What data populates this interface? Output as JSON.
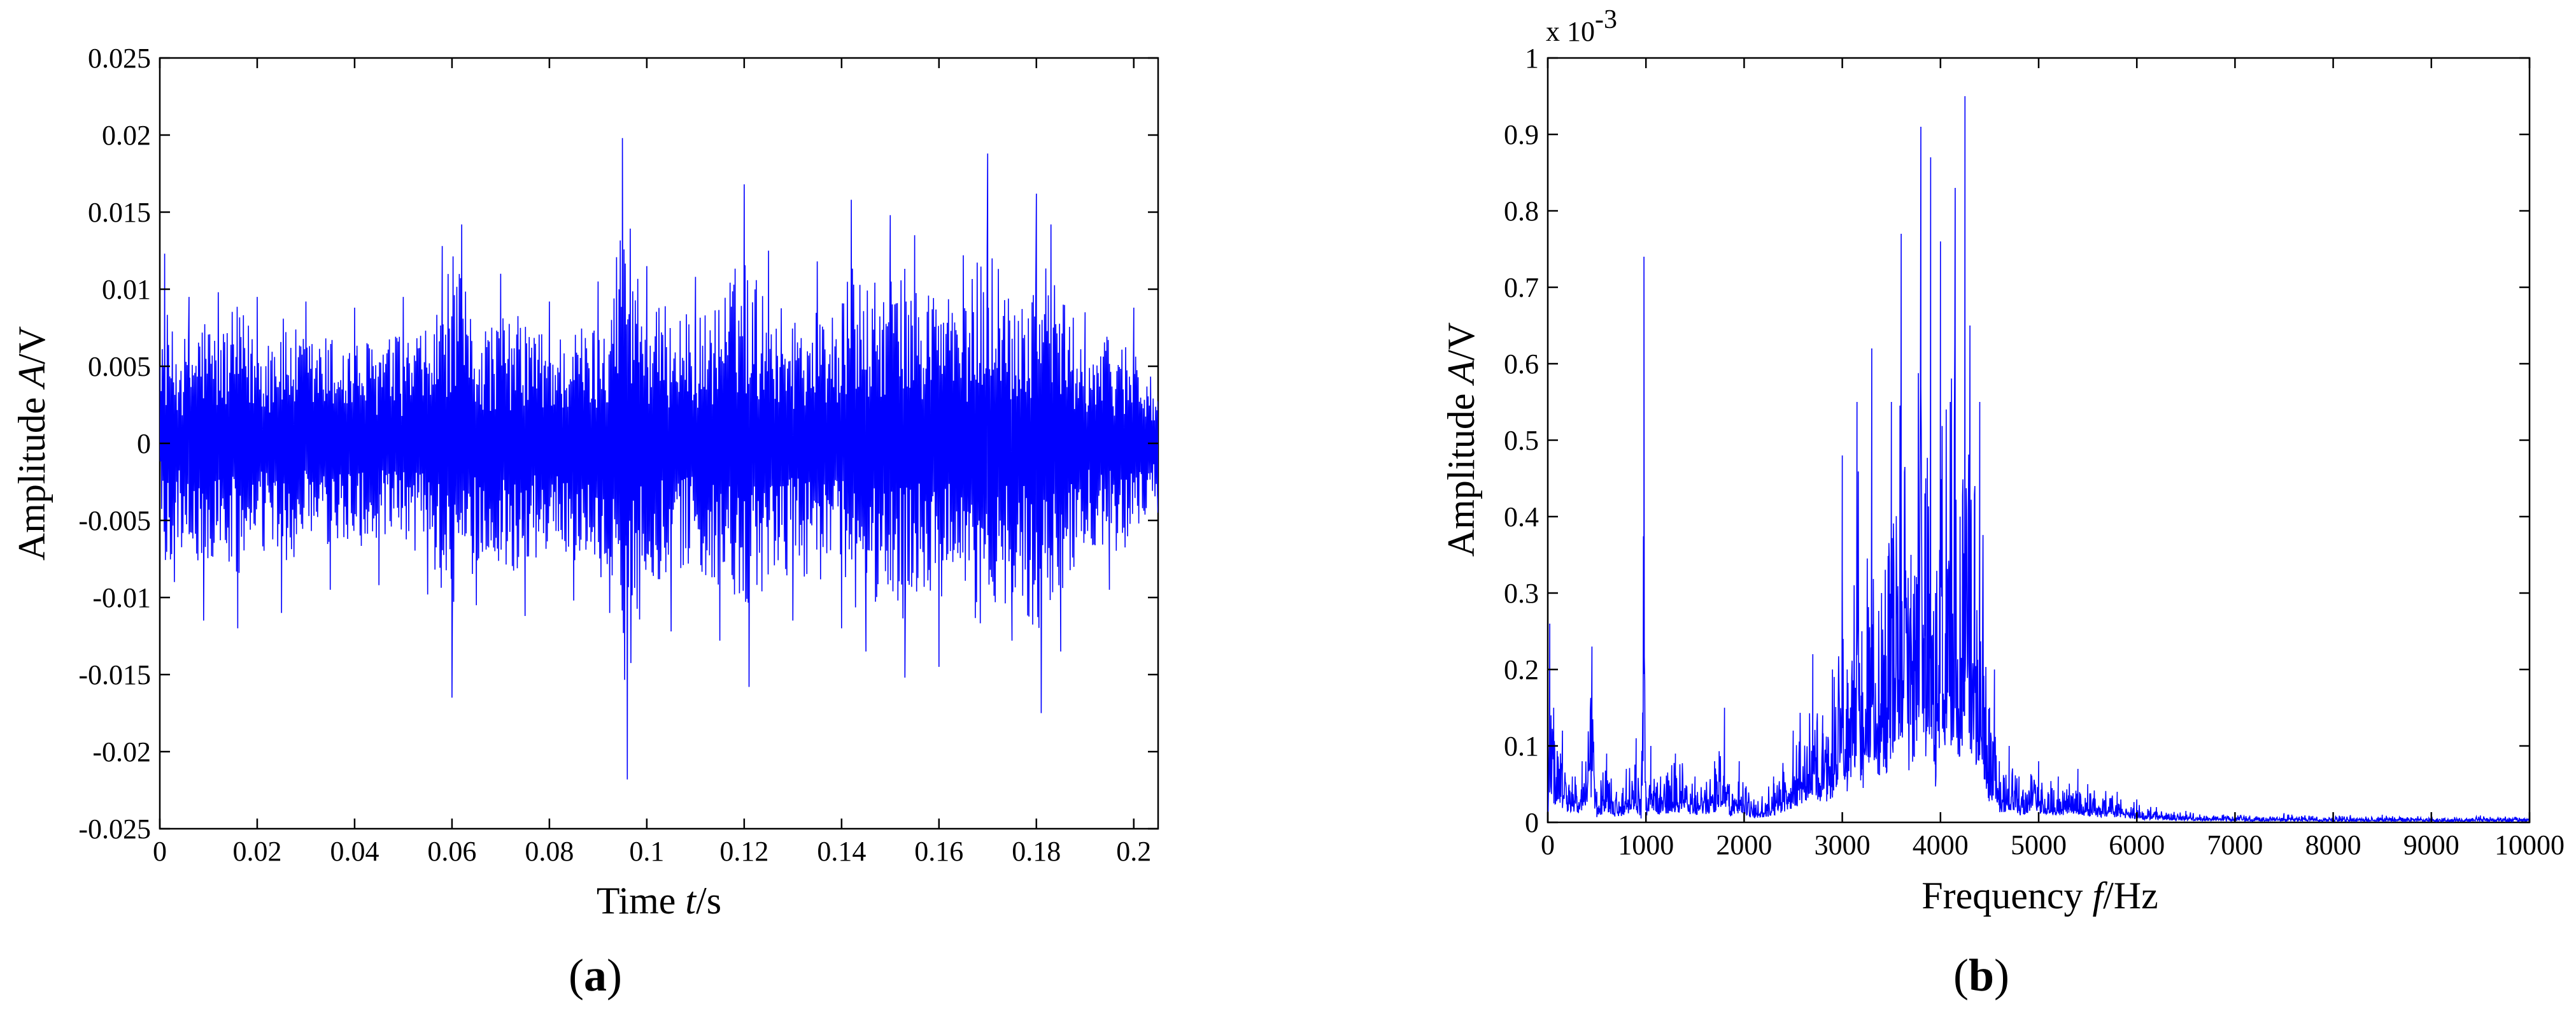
{
  "chart_data": [
    {
      "type": "line",
      "panel": "(a)",
      "panel_letter": "a",
      "xlabel_prefix": "Time ",
      "xlabel_var": "t",
      "xlabel_unit": "/s",
      "ylabel_prefix": "Amplitude ",
      "ylabel_var": "A",
      "ylabel_unit": "/V",
      "xlim": [
        0,
        0.205
      ],
      "ylim": [
        -0.025,
        0.025
      ],
      "xticks": [
        0,
        0.02,
        0.04,
        0.06,
        0.08,
        0.1,
        0.12,
        0.14,
        0.16,
        0.18,
        0.2
      ],
      "xtick_labels": [
        "0",
        "0.02",
        "0.04",
        "0.06",
        "0.08",
        "0.1",
        "0.12",
        "0.14",
        "0.16",
        "0.18",
        "0.2"
      ],
      "yticks": [
        -0.025,
        -0.02,
        -0.015,
        -0.01,
        -0.005,
        0,
        0.005,
        0.01,
        0.015,
        0.02,
        0.025
      ],
      "ytick_labels": [
        "-0.025",
        "-0.02",
        "-0.015",
        "-0.01",
        "-0.005",
        "0",
        "0.005",
        "0.01",
        "0.015",
        "0.02",
        "0.025"
      ],
      "grid": false,
      "line_color": "#0000ff",
      "series": [
        {
          "x": [
            0,
            0.001,
            0.003,
            0.006,
            0.009,
            0.012,
            0.016,
            0.02,
            0.025,
            0.03,
            0.035,
            0.04,
            0.045,
            0.05,
            0.055,
            0.058,
            0.06,
            0.062,
            0.065,
            0.07,
            0.075,
            0.08,
            0.085,
            0.09,
            0.095,
            0.096,
            0.1,
            0.105,
            0.11,
            0.115,
            0.12,
            0.121,
            0.125,
            0.13,
            0.135,
            0.14,
            0.142,
            0.145,
            0.15,
            0.153,
            0.155,
            0.16,
            0.165,
            0.17,
            0.175,
            0.18,
            0.181,
            0.183,
            0.185,
            0.19,
            0.195,
            0.2,
            0.205
          ],
          "y": [
            0.005,
            0.0123,
            -0.009,
            0.0095,
            -0.0115,
            0.0098,
            -0.012,
            0.0095,
            -0.011,
            0.0092,
            -0.0095,
            0.0088,
            -0.0092,
            0.0095,
            -0.0098,
            0.0128,
            -0.0165,
            0.0142,
            -0.0105,
            0.011,
            -0.0112,
            0.0092,
            -0.0102,
            0.0105,
            0.0198,
            -0.0218,
            0.0115,
            -0.0122,
            0.0108,
            -0.0128,
            0.0168,
            -0.0158,
            0.0125,
            -0.0115,
            0.0118,
            -0.012,
            0.0158,
            -0.0135,
            0.0148,
            -0.0152,
            0.0135,
            -0.0145,
            0.0122,
            0.0188,
            -0.0128,
            0.0162,
            -0.0175,
            0.0142,
            -0.0135,
            0.0085,
            -0.0095,
            0.0088,
            -0.0045
          ]
        }
      ]
    },
    {
      "type": "line",
      "panel": "(b)",
      "panel_letter": "b",
      "xlabel_prefix": "Frequency ",
      "xlabel_var": "f",
      "xlabel_unit": "/Hz",
      "ylabel_prefix": "Amplitude ",
      "ylabel_var": "A",
      "ylabel_unit": "/V",
      "y_multiplier_base": "x 10",
      "y_multiplier_exp": "-3",
      "xlim": [
        0,
        10000
      ],
      "ylim": [
        0,
        1
      ],
      "xticks": [
        0,
        1000,
        2000,
        3000,
        4000,
        5000,
        6000,
        7000,
        8000,
        9000,
        10000
      ],
      "xtick_labels": [
        "0",
        "1000",
        "2000",
        "3000",
        "4000",
        "5000",
        "6000",
        "7000",
        "8000",
        "9000",
        "10000"
      ],
      "yticks": [
        0,
        0.1,
        0.2,
        0.3,
        0.4,
        0.5,
        0.6,
        0.7,
        0.8,
        0.9,
        1
      ],
      "ytick_labels": [
        "0",
        "0.1",
        "0.2",
        "0.3",
        "0.4",
        "0.5",
        "0.6",
        "0.7",
        "0.8",
        "0.9",
        "1"
      ],
      "grid": false,
      "line_color": "#0000ff",
      "series": [
        {
          "x": [
            0,
            20,
            60,
            150,
            250,
            350,
            450,
            500,
            600,
            700,
            800,
            900,
            950,
            980,
            1000,
            1050,
            1150,
            1300,
            1500,
            1700,
            1800,
            1850,
            1950,
            2100,
            2300,
            2500,
            2700,
            2800,
            2900,
            3000,
            3050,
            3150,
            3200,
            3300,
            3400,
            3500,
            3600,
            3700,
            3800,
            3850,
            3900,
            3950,
            4000,
            4100,
            4150,
            4200,
            4250,
            4300,
            4350,
            4400,
            4500,
            4550,
            4600,
            4700,
            4800,
            5000,
            5200,
            5400,
            5500,
            5800,
            6000,
            6200,
            6500,
            7000,
            7500,
            8000,
            8500,
            9000,
            9500,
            10000
          ],
          "y": [
            0.04,
            0.26,
            0.15,
            0.12,
            0.06,
            0.08,
            0.23,
            0.04,
            0.09,
            0.04,
            0.07,
            0.11,
            0.02,
            0.74,
            0.04,
            0.1,
            0.06,
            0.09,
            0.06,
            0.08,
            0.15,
            0.05,
            0.08,
            0.03,
            0.06,
            0.12,
            0.22,
            0.14,
            0.2,
            0.48,
            0.2,
            0.55,
            0.25,
            0.62,
            0.3,
            0.55,
            0.77,
            0.35,
            0.91,
            0.45,
            0.87,
            0.3,
            0.76,
            0.55,
            0.83,
            0.4,
            0.95,
            0.65,
            0.44,
            0.55,
            0.15,
            0.2,
            0.08,
            0.1,
            0.06,
            0.08,
            0.06,
            0.07,
            0.05,
            0.04,
            0.03,
            0.02,
            0.015,
            0.01,
            0.012,
            0.01,
            0.01,
            0.008,
            0.009,
            0.008
          ]
        }
      ]
    }
  ]
}
